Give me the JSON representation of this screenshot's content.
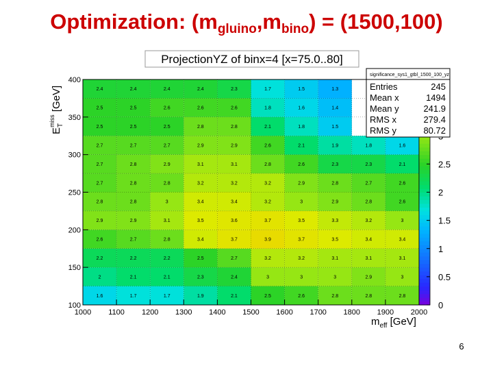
{
  "slide": {
    "title_prefix": "Optimization: (m",
    "title_sub1": "gluino",
    "title_mid": ",m",
    "title_sub2": "bino",
    "title_suffix": ") = (1500,100)",
    "page_number": "6"
  },
  "chart_data": {
    "type": "heatmap",
    "title": "ProjectionYZ of binx=4 [x=75.0..80]",
    "xlabel_main": "m",
    "xlabel_sub": "eff",
    "xlabel_unit": " [GeV]",
    "ylabel_main": "E",
    "ylabel_sub": "T",
    "ylabel_sup": "miss",
    "ylabel_unit": " [GeV]",
    "x_edges": [
      1000,
      1100,
      1200,
      1300,
      1400,
      1500,
      1600,
      1700,
      1800,
      1900,
      2000
    ],
    "y_edges": [
      100,
      125,
      150,
      175,
      200,
      225,
      250,
      275,
      300,
      325,
      350,
      375,
      400
    ],
    "xlim": [
      1000,
      2000
    ],
    "ylim": [
      100,
      400
    ],
    "x_ticks": [
      1000,
      1100,
      1200,
      1300,
      1400,
      1500,
      1600,
      1700,
      1800,
      1900,
      2000
    ],
    "y_ticks": [
      100,
      150,
      200,
      250,
      300,
      350,
      400
    ],
    "zlim": [
      0,
      4
    ],
    "z_ticks": [
      0,
      0.5,
      1,
      1.5,
      2,
      2.5,
      3,
      3.5
    ],
    "z_tick_labels": [
      "0",
      "0.5",
      "1",
      "1.5",
      "2",
      "2.5",
      "3",
      "3.5"
    ],
    "cell_values": [
      [
        "1.6",
        "1.7",
        "1.7",
        "1.9",
        "2.1",
        "2.5",
        "2.6",
        "2.8",
        "2.8",
        "2.8"
      ],
      [
        "2",
        "2.1",
        "2.1",
        "2.3",
        "2.4",
        "3",
        "3",
        "3",
        "2.9",
        "3"
      ],
      [
        "2.2",
        "2.2",
        "2.2",
        "2.5",
        "2.7",
        "3.2",
        "3.2",
        "3.1",
        "3.1",
        "3.1"
      ],
      [
        "2.6",
        "2.7",
        "2.8",
        "3.4",
        "3.7",
        "3.9",
        "3.7",
        "3.5",
        "3.4",
        "3.4"
      ],
      [
        "2.9",
        "2.9",
        "3.1",
        "3.5",
        "3.6",
        "3.7",
        "3.5",
        "3.3",
        "3.2",
        "3"
      ],
      [
        "2.8",
        "2.8",
        "3",
        "3.4",
        "3.4",
        "3.2",
        "3",
        "2.9",
        "2.8",
        "2.6"
      ],
      [
        "2.7",
        "2.8",
        "2.8",
        "3.2",
        "3.2",
        "3.2",
        "2.9",
        "2.8",
        "2.7",
        "2.6"
      ],
      [
        "2.7",
        "2.8",
        "2.9",
        "3.1",
        "3.1",
        "2.8",
        "2.6",
        "2.3",
        "2.3",
        "2.1"
      ],
      [
        "2.7",
        "2.7",
        "2.7",
        "2.9",
        "2.9",
        "2.6",
        "2.1",
        "1.9",
        "1.8",
        "1.6"
      ],
      [
        "2.5",
        "2.5",
        "2.5",
        "2.8",
        "2.8",
        "2.1",
        "1.8",
        "1.5",
        "",
        ""
      ],
      [
        "2.5",
        "2.5",
        "2.6",
        "2.6",
        "2.6",
        "1.8",
        "1.6",
        "1.4",
        "",
        ""
      ],
      [
        "2.4",
        "2.4",
        "2.4",
        "2.4",
        "2.3",
        "1.7",
        "1.5",
        "1.3",
        "",
        ""
      ]
    ],
    "grid": true,
    "stats_box": {
      "title": "significance_sys1_gtbl_1500_100_yz",
      "rows": [
        {
          "label": "Entries",
          "value": "245"
        },
        {
          "label": "Mean x",
          "value": "1494"
        },
        {
          "label": "Mean y",
          "value": "241.9"
        },
        {
          "label": "RMS x",
          "value": "279.4"
        },
        {
          "label": "RMS y",
          "value": "80.72"
        }
      ],
      "placement": "top-right"
    }
  }
}
